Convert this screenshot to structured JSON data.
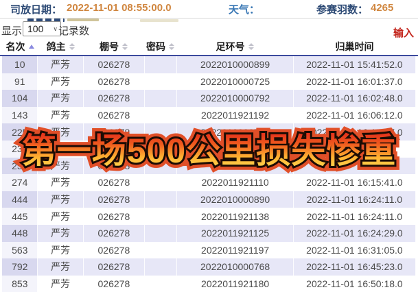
{
  "info_bar": {
    "release_date_label": "司放日期：",
    "release_date_value": "2022-11-01 08:55:00.0",
    "weather_label": "天气：",
    "entries_label": "参赛羽数：",
    "entries_value": "4265"
  },
  "controls": {
    "show_label": "显示",
    "page_size_value": "100",
    "records_label": "记录数",
    "input_link": "输入"
  },
  "table": {
    "columns": [
      {
        "key": "rank",
        "label": "名次",
        "sort": "asc"
      },
      {
        "key": "owner",
        "label": "鸽主",
        "sort": "both"
      },
      {
        "key": "loft",
        "label": "棚号",
        "sort": "both"
      },
      {
        "key": "password",
        "label": "密码",
        "sort": "both"
      },
      {
        "key": "ring",
        "label": "足环号",
        "sort": "both"
      },
      {
        "key": "time",
        "label": "归巢时间",
        "sort": "none"
      }
    ],
    "rows": [
      {
        "rank": "10",
        "owner": "严芳",
        "loft": "026278",
        "password": "",
        "ring": "2022010000899",
        "time": "2022-11-01 15:41:52.0"
      },
      {
        "rank": "91",
        "owner": "严芳",
        "loft": "026278",
        "password": "",
        "ring": "2022010000725",
        "time": "2022-11-01 16:01:37.0"
      },
      {
        "rank": "104",
        "owner": "严芳",
        "loft": "026278",
        "password": "",
        "ring": "2022010000792",
        "time": "2022-11-01 16:02:48.0"
      },
      {
        "rank": "143",
        "owner": "严芳",
        "loft": "026278",
        "password": "",
        "ring": "2022011921192",
        "time": "2022-11-01 16:06:12.0"
      },
      {
        "rank": "225",
        "owner": "严芳",
        "loft": "026278",
        "password": "",
        "ring": "2022010000767",
        "time": "2022-11-01 16:12:47.0"
      },
      {
        "rank": "232",
        "owner": "严芳",
        "loft": "026278",
        "password": "",
        "ring": "",
        "time": "",
        "occluded_by_banner": true
      },
      {
        "rank": "250",
        "owner": "严芳",
        "loft": "026278",
        "password": "",
        "ring": "",
        "time": "",
        "occluded_by_banner": true
      },
      {
        "rank": "274",
        "owner": "严芳",
        "loft": "026278",
        "password": "",
        "ring": "2022011921110",
        "time": "2022-11-01 16:15:41.0"
      },
      {
        "rank": "444",
        "owner": "严芳",
        "loft": "026278",
        "password": "",
        "ring": "2022010000890",
        "time": "2022-11-01 16:24:11.0"
      },
      {
        "rank": "445",
        "owner": "严芳",
        "loft": "026278",
        "password": "",
        "ring": "2022011921138",
        "time": "2022-11-01 16:24:11.0"
      },
      {
        "rank": "448",
        "owner": "严芳",
        "loft": "026278",
        "password": "",
        "ring": "2022011921125",
        "time": "2022-11-01 16:24:29.0"
      },
      {
        "rank": "563",
        "owner": "严芳",
        "loft": "026278",
        "password": "",
        "ring": "2022011921197",
        "time": "2022-11-01 16:31:05.0"
      },
      {
        "rank": "792",
        "owner": "严芳",
        "loft": "026278",
        "password": "",
        "ring": "2022010000768",
        "time": "2022-11-01 16:45:23.0"
      },
      {
        "rank": "853",
        "owner": "严芳",
        "loft": "026278",
        "password": "",
        "ring": "2022011921180",
        "time": "2022-11-01 16:50:18.0"
      }
    ]
  },
  "overlay_banner": {
    "text": "第一场500公里损失惨重",
    "gradient_top": "#e1251b",
    "gradient_bottom": "#ffdc55",
    "outline_color": "#1d0c04",
    "glow_color": "#e14f28"
  },
  "colors": {
    "stripe_lavender": "#e7e7f7",
    "rank_column_tint": "#d8d8ef",
    "header_rule_navy": "#3c4a9e",
    "label_navy": "#2d4a75",
    "weather_blue": "#3a78b5",
    "value_orange": "#d0863f",
    "input_link_red": "#c3251c"
  }
}
